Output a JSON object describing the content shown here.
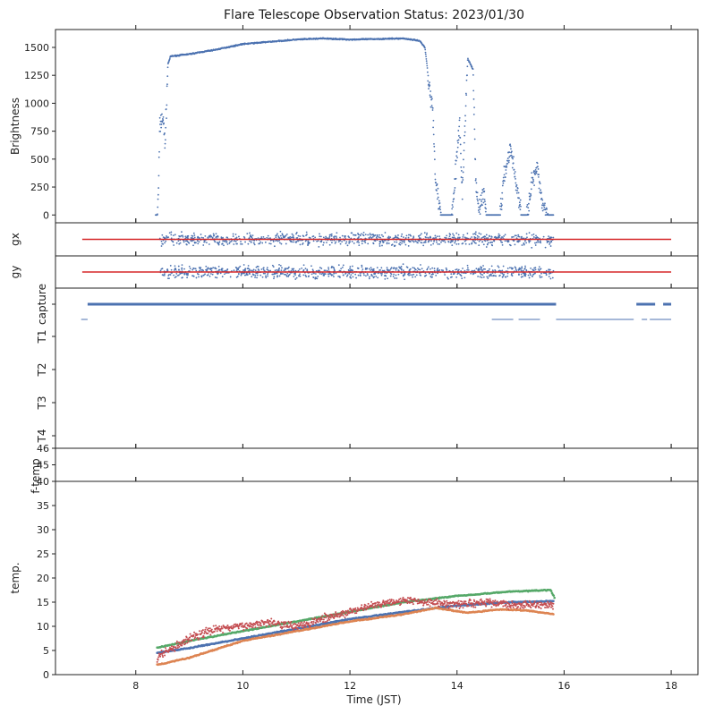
{
  "figure": {
    "title": "Flare Telescope Observation Status: 2023/01/30",
    "xlabel": "Time (JST)"
  },
  "chart_data": [
    {
      "id": "brightness",
      "type": "scatter",
      "ylabel": "Brightness",
      "xlim": [
        6.5,
        18.5
      ],
      "ylim": [
        -70,
        1660
      ],
      "xticks": [
        8,
        10,
        12,
        14,
        16,
        18
      ],
      "yticks": [
        0,
        250,
        500,
        750,
        1000,
        1250,
        1500
      ],
      "ytick_labels": [
        "0",
        "250",
        "500",
        "750",
        "1000",
        "1250",
        "1500"
      ],
      "color": "#4c72b0",
      "profile": [
        [
          8.37,
          0
        ],
        [
          8.4,
          0
        ],
        [
          8.42,
          150
        ],
        [
          8.45,
          800
        ],
        [
          8.5,
          880
        ],
        [
          8.55,
          650
        ],
        [
          8.6,
          1350
        ],
        [
          8.65,
          1420
        ],
        [
          9.0,
          1440
        ],
        [
          9.5,
          1480
        ],
        [
          10.0,
          1530
        ],
        [
          10.5,
          1550
        ],
        [
          11.0,
          1570
        ],
        [
          11.5,
          1580
        ],
        [
          12.0,
          1570
        ],
        [
          12.5,
          1575
        ],
        [
          13.0,
          1580
        ],
        [
          13.3,
          1560
        ],
        [
          13.4,
          1500
        ],
        [
          13.5,
          1100
        ],
        [
          13.55,
          900
        ],
        [
          13.6,
          300
        ],
        [
          13.7,
          0
        ],
        [
          13.9,
          0
        ],
        [
          14.05,
          800
        ],
        [
          14.1,
          200
        ],
        [
          14.2,
          1400
        ],
        [
          14.3,
          1300
        ],
        [
          14.35,
          300
        ],
        [
          14.4,
          50
        ],
        [
          14.5,
          200
        ],
        [
          14.55,
          0
        ],
        [
          14.8,
          0
        ],
        [
          14.9,
          400
        ],
        [
          15.0,
          600
        ],
        [
          15.1,
          300
        ],
        [
          15.2,
          0
        ],
        [
          15.3,
          0
        ],
        [
          15.4,
          300
        ],
        [
          15.5,
          400
        ],
        [
          15.6,
          100
        ],
        [
          15.7,
          0
        ],
        [
          15.8,
          0
        ]
      ]
    },
    {
      "id": "gx",
      "type": "scatter",
      "ylabel": "gx",
      "xlim": [
        6.5,
        18.5
      ],
      "ylim": [
        -1,
        1
      ],
      "yticks": [],
      "ref_line": {
        "x": [
          7.0,
          18.0
        ],
        "y": 0,
        "color": "#d62728"
      },
      "point_range": [
        8.45,
        15.8
      ],
      "color": "#4c72b0"
    },
    {
      "id": "gy",
      "type": "scatter",
      "ylabel": "gy",
      "xlim": [
        6.5,
        18.5
      ],
      "ylim": [
        -1,
        1
      ],
      "yticks": [],
      "ref_line": {
        "x": [
          7.0,
          18.0
        ],
        "y": 0,
        "color": "#d62728"
      },
      "point_range": [
        8.45,
        15.8
      ],
      "color": "#4c72b0"
    },
    {
      "id": "status",
      "type": "scatter",
      "xlim": [
        6.5,
        18.5
      ],
      "ylabel_ticks": [
        "capture",
        "T1",
        "T2",
        "T3",
        "T4"
      ],
      "capture_segments": [
        [
          7.1,
          15.85
        ],
        [
          17.35,
          17.7
        ],
        [
          17.85,
          18.0
        ]
      ],
      "t1_segments": [
        [
          6.98,
          7.1
        ],
        [
          14.65,
          15.05
        ],
        [
          15.15,
          15.55
        ],
        [
          15.85,
          17.3
        ],
        [
          17.45,
          17.55
        ],
        [
          17.6,
          18.0
        ]
      ],
      "color": "#4c72b0"
    },
    {
      "id": "ftemp",
      "type": "line",
      "ylabel": "f-temp",
      "xlim": [
        6.5,
        18.5
      ],
      "ylim": [
        44,
        46
      ],
      "yticks": [
        45,
        46
      ],
      "ytick_labels": [
        "45",
        "46"
      ]
    },
    {
      "id": "temp",
      "type": "scatter",
      "ylabel": "temp.",
      "xlim": [
        6.5,
        18.5
      ],
      "ylim": [
        0,
        40
      ],
      "xticks": [
        8,
        10,
        12,
        14,
        16,
        18
      ],
      "xtick_labels": [
        "8",
        "10",
        "12",
        "14",
        "16",
        "18"
      ],
      "yticks": [
        0,
        5,
        10,
        15,
        20,
        25,
        30,
        35,
        40
      ],
      "ytick_labels": [
        "0",
        "5",
        "10",
        "15",
        "20",
        "25",
        "30",
        "35",
        "40"
      ],
      "series": [
        {
          "color": "#55a868",
          "points": [
            [
              8.4,
              5.6
            ],
            [
              9,
              7
            ],
            [
              10,
              9
            ],
            [
              11,
              11
            ],
            [
              12,
              13
            ],
            [
              13,
              15
            ],
            [
              14,
              16.3
            ],
            [
              15,
              17.2
            ],
            [
              15.75,
              17.5
            ],
            [
              15.82,
              16
            ]
          ]
        },
        {
          "color": "#4c72b0",
          "points": [
            [
              8.4,
              4.5
            ],
            [
              9,
              5.5
            ],
            [
              10,
              7.5
            ],
            [
              11,
              9.5
            ],
            [
              12,
              11.5
            ],
            [
              13,
              13
            ],
            [
              14,
              14.3
            ],
            [
              15,
              15
            ],
            [
              15.8,
              15.2
            ]
          ]
        },
        {
          "color": "#dd8452",
          "points": [
            [
              8.4,
              2.0
            ],
            [
              9,
              3.5
            ],
            [
              10,
              7
            ],
            [
              11,
              9
            ],
            [
              12,
              11
            ],
            [
              13,
              12.5
            ],
            [
              13.6,
              13.8
            ],
            [
              14.2,
              12.8
            ],
            [
              14.8,
              13.5
            ],
            [
              15.3,
              13.3
            ],
            [
              15.8,
              12.5
            ]
          ]
        },
        {
          "color": "#c44e52",
          "noise": 1.2,
          "points": [
            [
              8.4,
              3.5
            ],
            [
              9,
              7.5
            ],
            [
              9.5,
              9.5
            ],
            [
              10,
              10
            ],
            [
              10.5,
              11
            ],
            [
              11,
              10
            ],
            [
              11.5,
              11.5
            ],
            [
              12,
              13
            ],
            [
              12.5,
              14.5
            ],
            [
              13,
              15.5
            ],
            [
              13.5,
              15
            ],
            [
              14,
              14.5
            ],
            [
              14.5,
              15
            ],
            [
              15,
              14.5
            ],
            [
              15.8,
              14.3
            ]
          ]
        }
      ]
    }
  ]
}
